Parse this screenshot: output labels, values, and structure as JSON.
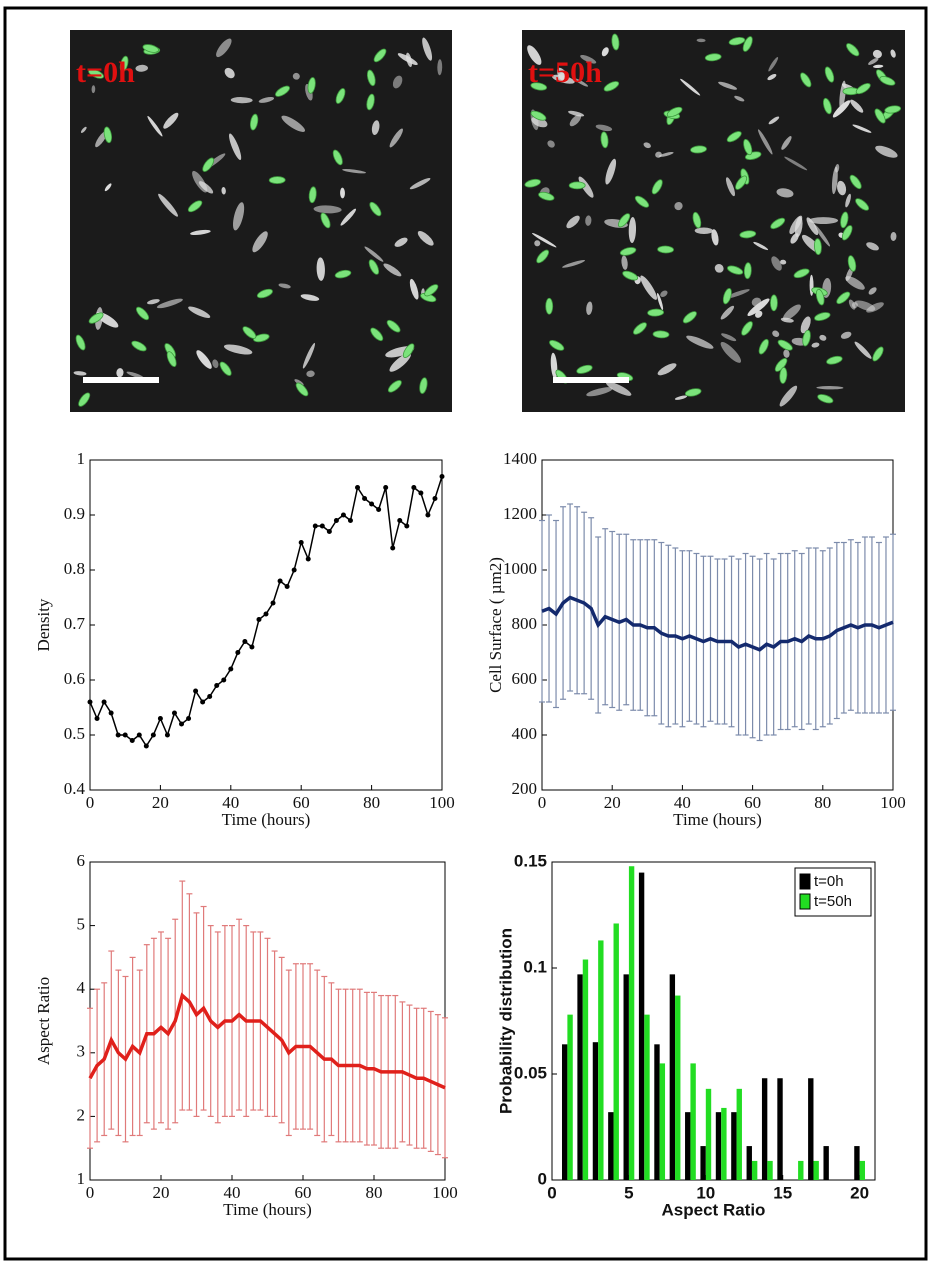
{
  "images": [
    {
      "label": "t=0h"
    },
    {
      "label": "t=50h"
    }
  ],
  "chart_data": [
    {
      "type": "line",
      "xlabel": "Time (hours)",
      "ylabel": "Density",
      "color": "#000000",
      "markers": true,
      "x": [
        0,
        2,
        4,
        6,
        8,
        10,
        12,
        14,
        16,
        18,
        20,
        22,
        24,
        26,
        28,
        30,
        32,
        34,
        36,
        38,
        40,
        42,
        44,
        46,
        48,
        50,
        52,
        54,
        56,
        58,
        60,
        62,
        64,
        66,
        68,
        70,
        72,
        74,
        76,
        78,
        80,
        82,
        84,
        86,
        88,
        90,
        92,
        94,
        96,
        98,
        100
      ],
      "values": [
        0.56,
        0.53,
        0.56,
        0.54,
        0.5,
        0.5,
        0.49,
        0.5,
        0.48,
        0.5,
        0.53,
        0.5,
        0.54,
        0.52,
        0.53,
        0.58,
        0.56,
        0.57,
        0.59,
        0.6,
        0.62,
        0.65,
        0.67,
        0.66,
        0.71,
        0.72,
        0.74,
        0.78,
        0.77,
        0.8,
        0.85,
        0.82,
        0.88,
        0.88,
        0.87,
        0.89,
        0.9,
        0.89,
        0.95,
        0.93,
        0.92,
        0.91,
        0.95,
        0.84,
        0.89,
        0.88,
        0.95,
        0.94,
        0.9,
        0.93,
        0.97
      ],
      "xlim": [
        0,
        100
      ],
      "xticks": [
        0,
        20,
        40,
        60,
        80,
        100
      ],
      "ylim": [
        0.4,
        1
      ],
      "yticks": [
        0.4,
        0.5,
        0.6,
        0.7,
        0.8,
        0.9,
        1
      ]
    },
    {
      "type": "line",
      "xlabel": "Time (hours)",
      "ylabel": "Cell Surface ( µm2)",
      "color": "#142a6e",
      "error_color": "#7c8bab",
      "x": [
        0,
        2,
        4,
        6,
        8,
        10,
        12,
        14,
        16,
        18,
        20,
        22,
        24,
        26,
        28,
        30,
        32,
        34,
        36,
        38,
        40,
        42,
        44,
        46,
        48,
        50,
        52,
        54,
        56,
        58,
        60,
        62,
        64,
        66,
        68,
        70,
        72,
        74,
        76,
        78,
        80,
        82,
        84,
        86,
        88,
        90,
        92,
        94,
        96,
        98,
        100
      ],
      "values": [
        850,
        860,
        840,
        880,
        900,
        890,
        880,
        860,
        800,
        830,
        820,
        810,
        820,
        800,
        800,
        790,
        790,
        770,
        760,
        760,
        750,
        760,
        750,
        740,
        750,
        740,
        740,
        740,
        720,
        730,
        720,
        710,
        730,
        720,
        740,
        740,
        750,
        740,
        760,
        750,
        750,
        760,
        780,
        790,
        800,
        790,
        800,
        800,
        790,
        800,
        810
      ],
      "errors": [
        330,
        340,
        340,
        350,
        340,
        340,
        330,
        330,
        320,
        320,
        320,
        320,
        310,
        310,
        310,
        320,
        320,
        330,
        330,
        320,
        320,
        310,
        310,
        310,
        300,
        300,
        300,
        310,
        320,
        330,
        330,
        330,
        330,
        320,
        320,
        320,
        320,
        320,
        320,
        330,
        320,
        320,
        320,
        310,
        310,
        310,
        320,
        320,
        310,
        320,
        320
      ],
      "xlim": [
        0,
        100
      ],
      "xticks": [
        0,
        20,
        40,
        60,
        80,
        100
      ],
      "ylim": [
        200,
        1400
      ],
      "yticks": [
        200,
        400,
        600,
        800,
        1000,
        1200,
        1400
      ]
    },
    {
      "type": "line",
      "xlabel": "Time (hours)",
      "ylabel": "Aspect Ratio",
      "color": "#e0201b",
      "error_color": "#e07a7a",
      "x": [
        0,
        2,
        4,
        6,
        8,
        10,
        12,
        14,
        16,
        18,
        20,
        22,
        24,
        26,
        28,
        30,
        32,
        34,
        36,
        38,
        40,
        42,
        44,
        46,
        48,
        50,
        52,
        54,
        56,
        58,
        60,
        62,
        64,
        66,
        68,
        70,
        72,
        74,
        76,
        78,
        80,
        82,
        84,
        86,
        88,
        90,
        92,
        94,
        96,
        98,
        100
      ],
      "values": [
        2.6,
        2.8,
        2.9,
        3.2,
        3.0,
        2.9,
        3.1,
        3.0,
        3.3,
        3.3,
        3.4,
        3.3,
        3.5,
        3.9,
        3.8,
        3.6,
        3.7,
        3.5,
        3.4,
        3.5,
        3.5,
        3.6,
        3.5,
        3.5,
        3.5,
        3.4,
        3.3,
        3.2,
        3.0,
        3.1,
        3.1,
        3.1,
        3.0,
        2.9,
        2.9,
        2.8,
        2.8,
        2.8,
        2.8,
        2.75,
        2.75,
        2.7,
        2.7,
        2.7,
        2.7,
        2.65,
        2.6,
        2.6,
        2.55,
        2.5,
        2.45
      ],
      "errors": [
        1.1,
        1.2,
        1.2,
        1.4,
        1.3,
        1.3,
        1.4,
        1.3,
        1.4,
        1.5,
        1.5,
        1.5,
        1.6,
        1.8,
        1.7,
        1.6,
        1.6,
        1.5,
        1.5,
        1.5,
        1.5,
        1.5,
        1.5,
        1.4,
        1.4,
        1.4,
        1.3,
        1.3,
        1.3,
        1.3,
        1.3,
        1.3,
        1.3,
        1.3,
        1.2,
        1.2,
        1.2,
        1.2,
        1.2,
        1.2,
        1.2,
        1.2,
        1.2,
        1.2,
        1.1,
        1.1,
        1.1,
        1.1,
        1.1,
        1.1,
        1.1
      ],
      "xlim": [
        0,
        100
      ],
      "xticks": [
        0,
        20,
        40,
        60,
        80,
        100
      ],
      "ylim": [
        1,
        6
      ],
      "yticks": [
        1,
        2,
        3,
        4,
        5,
        6
      ]
    },
    {
      "type": "bar",
      "xlabel": "Aspect Ratio",
      "ylabel": "Probability distribution",
      "legend": "upper right",
      "x": [
        1,
        2,
        3,
        4,
        5,
        6,
        7,
        8,
        9,
        10,
        11,
        12,
        13,
        14,
        15,
        16,
        17,
        18,
        19,
        20
      ],
      "series": [
        {
          "name": "t=0h",
          "color": "#000000",
          "values": [
            0.064,
            0.097,
            0.065,
            0.032,
            0.097,
            0.145,
            0.064,
            0.097,
            0.032,
            0.016,
            0.032,
            0.032,
            0.016,
            0.048,
            0.048,
            0,
            0.048,
            0.016,
            0,
            0.016
          ]
        },
        {
          "name": "t=50h",
          "color": "#22dd22",
          "values": [
            0.078,
            0.104,
            0.113,
            0.121,
            0.148,
            0.078,
            0.055,
            0.087,
            0.055,
            0.043,
            0.034,
            0.043,
            0.009,
            0.009,
            0,
            0.009,
            0.009,
            0,
            0,
            0.009
          ]
        }
      ],
      "xlim": [
        0,
        21
      ],
      "xticks": [
        0,
        5,
        10,
        15,
        20
      ],
      "ylim": [
        0,
        0.15
      ],
      "yticks": [
        0,
        0.05,
        0.1,
        0.15
      ]
    }
  ]
}
